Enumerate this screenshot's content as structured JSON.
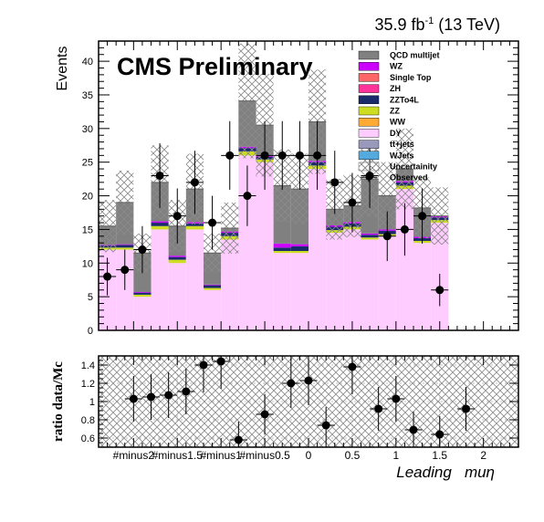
{
  "header": {
    "lumi_text": "35.9 fb",
    "lumi_sup": "-1",
    "lumi_suffix": " (13 TeV)"
  },
  "watermark": "CMS Preliminary",
  "chart_data": {
    "type": "bar",
    "stacked": true,
    "xlabel": "Leading   muη",
    "ylabel": "Events",
    "ylim": [
      0,
      43
    ],
    "yticks": [
      0,
      5,
      10,
      15,
      20,
      25,
      30,
      35,
      40
    ],
    "xlim": [
      -2.4,
      2.4
    ],
    "bin_edges": [
      -2.4,
      -2.2,
      -2.0,
      -1.8,
      -1.6,
      -1.4,
      -1.2,
      -1.0,
      -0.8,
      -0.6,
      -0.4,
      -0.2,
      0.0,
      0.2,
      0.4,
      0.6,
      0.8,
      1.0,
      1.2,
      1.4,
      1.6,
      1.8,
      2.0,
      2.2,
      2.4
    ],
    "xticks": [
      {
        "x": -2.0,
        "label": "#minus2"
      },
      {
        "x": -1.5,
        "label": "#minus1.5"
      },
      {
        "x": -1.0,
        "label": "#minus1"
      },
      {
        "x": -0.5,
        "label": "#minus0.5"
      },
      {
        "x": 0.0,
        "label": "0"
      },
      {
        "x": 0.5,
        "label": "0.5"
      },
      {
        "x": 1.0,
        "label": "1"
      },
      {
        "x": 1.5,
        "label": "1.5"
      },
      {
        "x": 2.0,
        "label": "2"
      }
    ],
    "legend_position": "top-right",
    "legend": [
      {
        "name": "QCD multijet",
        "color": "#808080"
      },
      {
        "name": "WZ",
        "color": "#cc00ff"
      },
      {
        "name": "Single Top",
        "color": "#ff6666"
      },
      {
        "name": "ZH",
        "color": "#ff3399"
      },
      {
        "name": "ZZTo4L",
        "color": "#1a2b6b"
      },
      {
        "name": "ZZ",
        "color": "#ccdd22"
      },
      {
        "name": "WW",
        "color": "#ffaa33"
      },
      {
        "name": "DY",
        "color": "#ffccff"
      },
      {
        "name": "tt̅+jets",
        "color": "#9999bb"
      },
      {
        "name": "WJets",
        "color": "#55aadd"
      },
      {
        "name": "Uncertainity",
        "color": "#999999"
      },
      {
        "name": "Observed",
        "color": "#000000"
      }
    ],
    "stack_components": [
      {
        "name": "DY",
        "color": "#ffccff",
        "values": [
          12,
          12,
          5,
          15,
          10,
          15,
          6,
          13.5,
          26,
          25,
          11.5,
          11.5,
          24,
          14.5,
          15,
          13.5,
          14,
          21,
          13,
          16
        ]
      },
      {
        "name": "ZZ",
        "color": "#ccdd22",
        "values": [
          0.3,
          0.3,
          0.3,
          0.5,
          0.5,
          0.5,
          0.3,
          0.5,
          0.6,
          0.4,
          0.3,
          0.3,
          0.5,
          0.4,
          0.4,
          0.3,
          0.3,
          0.5,
          0.3,
          0.4
        ]
      },
      {
        "name": "ZZTo4L",
        "color": "#1a2b6b",
        "values": [
          0.3,
          0.4,
          0.3,
          0.5,
          0.4,
          0.4,
          0.4,
          0.5,
          0.5,
          0.4,
          0.5,
          0.7,
          0.5,
          0.5,
          0.5,
          0.4,
          0.5,
          0.5,
          0.4,
          0.4
        ]
      },
      {
        "name": "WZ",
        "color": "#cc00ff",
        "values": [
          0.1,
          0.1,
          0.1,
          0.2,
          0.2,
          0.2,
          0.1,
          0.2,
          0.2,
          0.2,
          0.6,
          0.3,
          0.2,
          0.2,
          0.2,
          0.2,
          0.2,
          0.2,
          0.2,
          0.2
        ]
      },
      {
        "name": "QCD multijet",
        "color": "#808080",
        "values": [
          2.8,
          6.2,
          5.8,
          5.8,
          4.4,
          4.9,
          4.7,
          0.5,
          6.8,
          4.5,
          8.6,
          8.2,
          5.8,
          2.4,
          2.4,
          8.1,
          5.0,
          1.8,
          4.3,
          0
        ]
      }
    ],
    "stack_bins": [
      [
        -2.4,
        -2.2
      ],
      [
        -2.2,
        -2.0
      ],
      [
        -2.0,
        -1.8
      ],
      [
        -1.8,
        -1.6
      ],
      [
        -1.6,
        -1.4
      ],
      [
        -1.4,
        -1.2
      ],
      [
        -1.2,
        -1.0
      ],
      [
        -1.0,
        -0.8
      ],
      [
        -0.8,
        -0.6
      ],
      [
        -0.6,
        -0.4
      ],
      [
        -0.4,
        -0.2
      ],
      [
        -0.2,
        0.0
      ],
      [
        0.0,
        0.2
      ],
      [
        0.2,
        0.4
      ],
      [
        0.4,
        0.6
      ],
      [
        0.6,
        0.8
      ],
      [
        0.8,
        1.0
      ],
      [
        1.0,
        1.2
      ],
      [
        1.2,
        1.4
      ],
      [
        1.4,
        1.6
      ]
    ],
    "observed": [
      {
        "x": -2.3,
        "y": 8,
        "err": 2.8
      },
      {
        "x": -2.1,
        "y": 9,
        "err": 3
      },
      {
        "x": -1.9,
        "y": 12,
        "err": 3.5
      },
      {
        "x": -1.7,
        "y": 23,
        "err": 4.8
      },
      {
        "x": -1.5,
        "y": 17,
        "err": 4.1
      },
      {
        "x": -1.3,
        "y": 22,
        "err": 4.7
      },
      {
        "x": -1.1,
        "y": 16,
        "err": 4
      },
      {
        "x": -0.9,
        "y": 26,
        "err": 5.1
      },
      {
        "x": -0.7,
        "y": 20,
        "err": 4.5
      },
      {
        "x": -0.5,
        "y": 26,
        "err": 5.1
      },
      {
        "x": -0.3,
        "y": 26,
        "err": 5.1
      },
      {
        "x": -0.1,
        "y": 26,
        "err": 5.1
      },
      {
        "x": 0.1,
        "y": 26,
        "err": 5.1
      },
      {
        "x": 0.3,
        "y": 22,
        "err": 4.7
      },
      {
        "x": 0.5,
        "y": 19,
        "err": 4.4
      },
      {
        "x": 0.7,
        "y": 23,
        "err": 4.8
      },
      {
        "x": 0.9,
        "y": 14,
        "err": 3.7
      },
      {
        "x": 1.1,
        "y": 15,
        "err": 3.9
      },
      {
        "x": 1.3,
        "y": 17,
        "err": 4.1
      },
      {
        "x": 1.5,
        "y": 6,
        "err": 2.4
      }
    ],
    "ratio": {
      "ylabel": "ratio data/Mc",
      "ylim": [
        0.5,
        1.5
      ],
      "yticks": [
        0.6,
        0.8,
        1,
        1.2,
        1.4
      ],
      "points": [
        {
          "x": -2.0,
          "y": 1.03,
          "err": 0.25
        },
        {
          "x": -1.8,
          "y": 1.05,
          "err": 0.25
        },
        {
          "x": -1.6,
          "y": 1.07,
          "err": 0.25
        },
        {
          "x": -1.4,
          "y": 1.11,
          "err": 0.25
        },
        {
          "x": -1.2,
          "y": 1.4,
          "err": 0.3
        },
        {
          "x": -1.0,
          "y": 1.44,
          "err": 0.3
        },
        {
          "x": -0.8,
          "y": 0.58,
          "err": 0.2
        },
        {
          "x": -0.5,
          "y": 0.86,
          "err": 0.22
        },
        {
          "x": -0.2,
          "y": 1.2,
          "err": 0.27
        },
        {
          "x": 0.0,
          "y": 1.23,
          "err": 0.27
        },
        {
          "x": 0.2,
          "y": 0.74,
          "err": 0.2
        },
        {
          "x": 0.5,
          "y": 1.38,
          "err": 0.3
        },
        {
          "x": 0.8,
          "y": 0.92,
          "err": 0.24
        },
        {
          "x": 1.0,
          "y": 1.03,
          "err": 0.25
        },
        {
          "x": 1.2,
          "y": 0.69,
          "err": 0.2
        },
        {
          "x": 1.5,
          "y": 0.64,
          "err": 0.2
        },
        {
          "x": 1.8,
          "y": 0.92,
          "err": 0.24
        }
      ]
    }
  }
}
